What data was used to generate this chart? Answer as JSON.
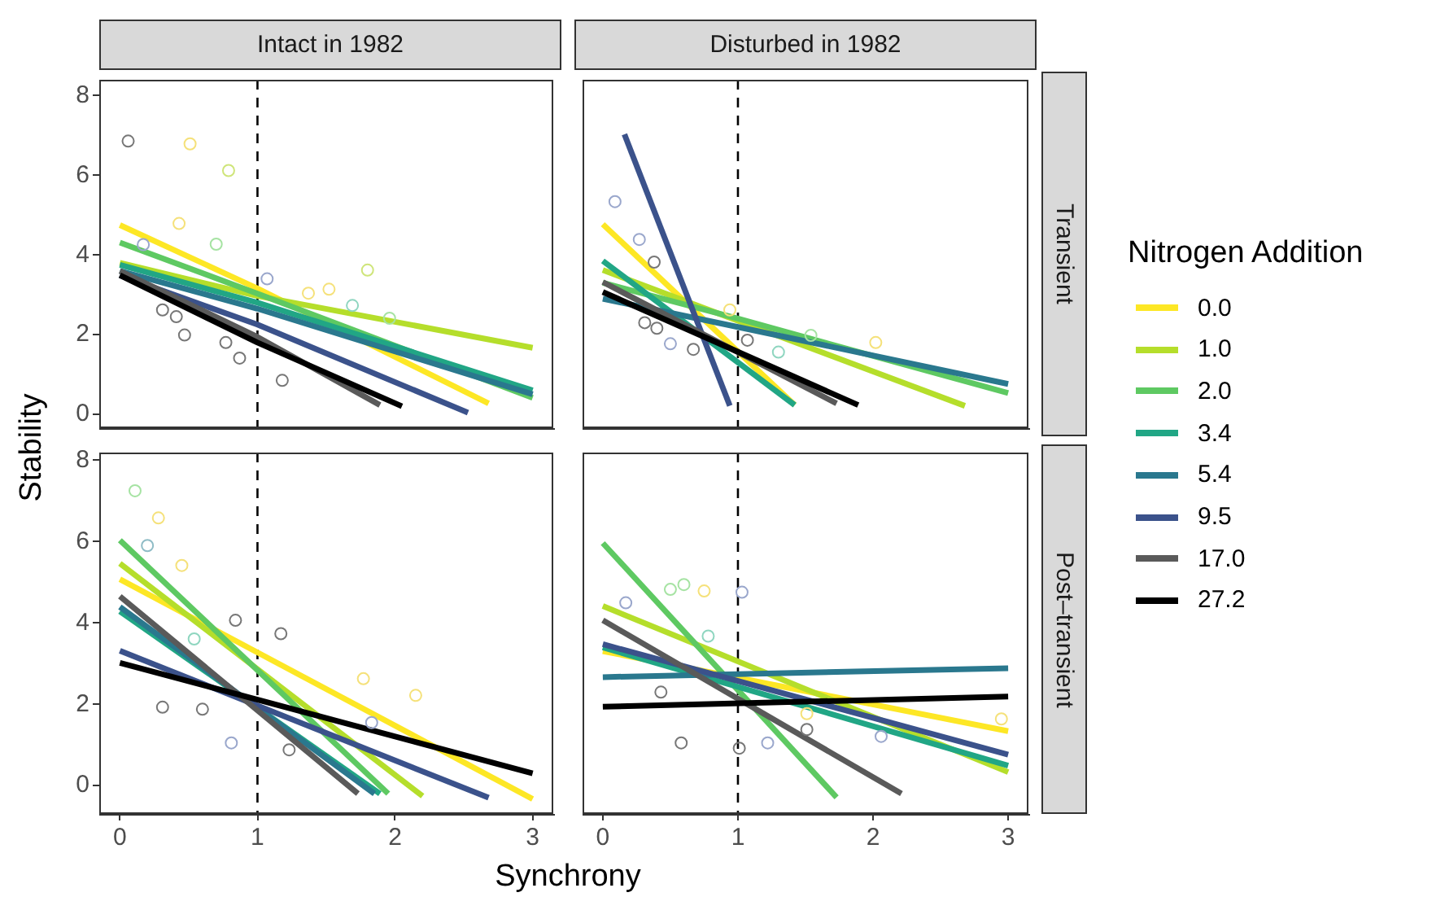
{
  "chart_data": [
    {
      "type": "line",
      "title": "Intact in 1982",
      "ylabel": "Stability",
      "legend": "right",
      "legend_title": "Nitrogen Addition",
      "tick_labels": "y",
      "xlim": [
        -0.15,
        3.15
      ],
      "ylim": [
        -0.35,
        8.4
      ],
      "xticks": [
        0,
        1,
        2,
        3
      ],
      "yticks": [
        0,
        2,
        4,
        6,
        8
      ],
      "ref_lines": [
        {
          "axis": "x",
          "value": 1,
          "line_style": "dashed"
        }
      ],
      "series": [
        {
          "type": "scatter",
          "marker": "circle",
          "x": [
            0.06,
            0.51,
            0.79,
            0.43,
            0.7,
            1.8,
            1.18,
            0.31,
            0.41,
            0.47,
            0.77,
            0.87,
            1.37,
            1.52,
            1.69,
            1.96,
            1.07,
            0.17
          ],
          "values": [
            6.86,
            6.79,
            6.12,
            4.79,
            4.27,
            3.62,
            0.85,
            2.62,
            2.45,
            1.99,
            1.8,
            1.41,
            3.04,
            3.14,
            2.73,
            2.41,
            3.4,
            4.26
          ],
          "colors": [
            "#777777",
            "#f5e17a",
            "#cfe57a",
            "#f5e17a",
            "#a6e3a3",
            "#cfe57a",
            "#777777",
            "#777777",
            "#777777",
            "#777777",
            "#777777",
            "#777777",
            "#f5e17a",
            "#f5e17a",
            "#8fd6c0",
            "#a6e3a3",
            "#9aa7cc",
            "#9aa7cc"
          ]
        },
        {
          "name": "0.0",
          "color": "#fde725",
          "x": [
            0,
            1,
            2.68
          ],
          "values": [
            4.75,
            3.16,
            0.27
          ]
        },
        {
          "name": "1.0",
          "color": "#b5de2b",
          "x": [
            0,
            1,
            3.0
          ],
          "values": [
            3.8,
            2.97,
            1.67
          ]
        },
        {
          "name": "2.0",
          "color": "#5ec962",
          "x": [
            0,
            1,
            3.0
          ],
          "values": [
            4.31,
            3.03,
            0.41
          ]
        },
        {
          "name": "3.4",
          "color": "#21a685",
          "x": [
            0,
            1,
            3.0
          ],
          "values": [
            3.75,
            2.8,
            0.6
          ]
        },
        {
          "name": "5.4",
          "color": "#2a788e",
          "x": [
            0,
            1,
            3.0
          ],
          "values": [
            3.6,
            2.65,
            0.5
          ]
        },
        {
          "name": "9.5",
          "color": "#3b528b",
          "x": [
            0,
            1,
            2.53
          ],
          "values": [
            3.49,
            2.25,
            0.04
          ]
        },
        {
          "name": "17.0",
          "color": "#5a5a5a",
          "x": [
            0,
            1,
            1.89
          ],
          "values": [
            3.6,
            1.94,
            0.23
          ]
        },
        {
          "name": "27.2",
          "color": "#000000",
          "x": [
            0,
            1,
            2.05
          ],
          "values": [
            3.49,
            1.8,
            0.2
          ]
        }
      ]
    },
    {
      "type": "line",
      "title": "Disturbed in 1982",
      "annotations": [
        "Transient"
      ],
      "tick_labels": false,
      "xlim": [
        -0.15,
        3.15
      ],
      "ylim": [
        -0.35,
        8.4
      ],
      "xticks": [
        0,
        1,
        2,
        3
      ],
      "yticks": [
        0,
        2,
        4,
        6,
        8
      ],
      "ref_lines": [
        {
          "axis": "x",
          "value": 1,
          "line_style": "dashed"
        }
      ],
      "series": [
        {
          "type": "scatter",
          "marker": "circle",
          "x": [
            0.09,
            0.27,
            0.38,
            0.31,
            0.4,
            0.5,
            0.67,
            1.07,
            1.3,
            1.54,
            2.02,
            0.94
          ],
          "values": [
            5.34,
            4.39,
            3.82,
            2.3,
            2.16,
            1.77,
            1.63,
            1.86,
            1.56,
            1.98,
            1.8,
            2.62
          ],
          "colors": [
            "#9aa7cc",
            "#9aa7cc",
            "#777777",
            "#777777",
            "#777777",
            "#9aa7cc",
            "#777777",
            "#777777",
            "#8fd6c0",
            "#a6e3a3",
            "#f5e17a",
            "#f5e17a"
          ]
        },
        {
          "name": "0.0",
          "color": "#fde725",
          "x": [
            0,
            1.42
          ],
          "values": [
            4.77,
            0.23
          ]
        },
        {
          "name": "1.0",
          "color": "#b5de2b",
          "x": [
            0,
            2.68
          ],
          "values": [
            3.62,
            0.21
          ]
        },
        {
          "name": "2.0",
          "color": "#5ec962",
          "x": [
            0,
            1,
            3.0
          ],
          "values": [
            3.3,
            2.4,
            0.53
          ]
        },
        {
          "name": "3.4",
          "color": "#21a685",
          "x": [
            0,
            1.42
          ],
          "values": [
            3.85,
            0.23
          ]
        },
        {
          "name": "5.4",
          "color": "#2a788e",
          "x": [
            0,
            1,
            3.0
          ],
          "values": [
            2.9,
            2.19,
            0.76
          ]
        },
        {
          "name": "9.5",
          "color": "#3b528b",
          "x": [
            0.16,
            0.94
          ],
          "values": [
            7.03,
            0.21
          ]
        },
        {
          "name": "17.0",
          "color": "#5a5a5a",
          "x": [
            0,
            1.73
          ],
          "values": [
            3.32,
            0.27
          ]
        },
        {
          "name": "27.2",
          "color": "#000000",
          "x": [
            0,
            1.89
          ],
          "values": [
            3.07,
            0.23
          ]
        }
      ]
    },
    {
      "type": "line",
      "xlabel": "Synchrony",
      "xlim": [
        -0.15,
        3.15
      ],
      "ylim": [
        -0.7,
        8.2
      ],
      "xticks": [
        0,
        1,
        2,
        3
      ],
      "yticks": [
        0,
        2,
        4,
        6,
        8
      ],
      "ref_lines": [
        {
          "axis": "x",
          "value": 1,
          "line_style": "dashed"
        }
      ],
      "series": [
        {
          "type": "scatter",
          "marker": "circle",
          "x": [
            0.11,
            0.28,
            0.2,
            0.45,
            0.84,
            1.17,
            0.31,
            0.6,
            1.77,
            2.15,
            1.23,
            0.81,
            1.83,
            0.54
          ],
          "values": [
            7.26,
            6.59,
            5.91,
            5.42,
            4.07,
            3.74,
            1.93,
            1.88,
            2.63,
            2.22,
            0.88,
            1.05,
            1.55,
            3.61
          ],
          "colors": [
            "#a6e3a3",
            "#f5e17a",
            "#8fbcc6",
            "#f5e17a",
            "#777777",
            "#777777",
            "#777777",
            "#777777",
            "#f5e17a",
            "#f5e17a",
            "#777777",
            "#9aa7cc",
            "#9aa7cc",
            "#8fd6c0"
          ]
        },
        {
          "name": "0.0",
          "color": "#fde725",
          "x": [
            0,
            3.0
          ],
          "values": [
            5.08,
            -0.33
          ]
        },
        {
          "name": "1.0",
          "color": "#b5de2b",
          "x": [
            0,
            2.2
          ],
          "values": [
            5.47,
            -0.26
          ]
        },
        {
          "name": "2.0",
          "color": "#5ec962",
          "x": [
            0,
            1.95
          ],
          "values": [
            6.04,
            -0.2
          ]
        },
        {
          "name": "3.4",
          "color": "#21a685",
          "x": [
            0,
            1.89
          ],
          "values": [
            4.29,
            -0.2
          ]
        },
        {
          "name": "5.4",
          "color": "#2a788e",
          "x": [
            0,
            1.85
          ],
          "values": [
            4.4,
            -0.2
          ]
        },
        {
          "name": "9.5",
          "color": "#3b528b",
          "x": [
            0,
            2.68
          ],
          "values": [
            3.32,
            -0.3
          ]
        },
        {
          "name": "17.0",
          "color": "#5a5a5a",
          "x": [
            0,
            1.73
          ],
          "values": [
            4.66,
            -0.2
          ]
        },
        {
          "name": "27.2",
          "color": "#000000",
          "x": [
            0,
            3.0
          ],
          "values": [
            3.02,
            0.3
          ]
        }
      ]
    },
    {
      "type": "line",
      "annotations": [
        "Post–transient"
      ],
      "tick_labels": "x",
      "xlim": [
        -0.15,
        3.15
      ],
      "ylim": [
        -0.7,
        8.2
      ],
      "xticks": [
        0,
        1,
        2,
        3
      ],
      "yticks": [
        0,
        2,
        4,
        6,
        8
      ],
      "ref_lines": [
        {
          "axis": "x",
          "value": 1,
          "line_style": "dashed"
        }
      ],
      "series": [
        {
          "type": "scatter",
          "marker": "circle",
          "x": [
            0.17,
            0.6,
            0.5,
            0.75,
            1.03,
            0.58,
            1.01,
            0.43,
            2.06,
            2.95,
            1.51,
            1.51,
            1.22,
            0.78
          ],
          "values": [
            4.5,
            4.95,
            4.83,
            4.79,
            4.76,
            1.05,
            0.92,
            2.3,
            1.21,
            1.64,
            1.77,
            1.38,
            1.05,
            3.68
          ],
          "colors": [
            "#9aa7cc",
            "#a6e3a3",
            "#a6e3a3",
            "#f5e17a",
            "#9aa7cc",
            "#777777",
            "#777777",
            "#777777",
            "#9aa7cc",
            "#f5e17a",
            "#f5e17a",
            "#777777",
            "#9aa7cc",
            "#8fd6c0"
          ]
        },
        {
          "name": "0.0",
          "color": "#fde725",
          "x": [
            0,
            3.0
          ],
          "values": [
            3.31,
            1.34
          ]
        },
        {
          "name": "1.0",
          "color": "#b5de2b",
          "x": [
            0,
            3.0
          ],
          "values": [
            4.42,
            0.33
          ]
        },
        {
          "name": "2.0",
          "color": "#5ec962",
          "x": [
            0,
            1.73
          ],
          "values": [
            5.97,
            -0.29
          ]
        },
        {
          "name": "3.4",
          "color": "#21a685",
          "x": [
            0,
            3.0
          ],
          "values": [
            3.4,
            0.49
          ]
        },
        {
          "name": "5.4",
          "color": "#2a788e",
          "x": [
            0,
            3.0
          ],
          "values": [
            2.67,
            2.89
          ]
        },
        {
          "name": "9.5",
          "color": "#3b528b",
          "x": [
            0,
            3.0
          ],
          "values": [
            3.48,
            0.76
          ]
        },
        {
          "name": "17.0",
          "color": "#5a5a5a",
          "x": [
            0,
            2.21
          ],
          "values": [
            4.07,
            -0.2
          ]
        },
        {
          "name": "27.2",
          "color": "#000000",
          "x": [
            0,
            3.0
          ],
          "values": [
            1.94,
            2.19
          ]
        }
      ]
    }
  ]
}
